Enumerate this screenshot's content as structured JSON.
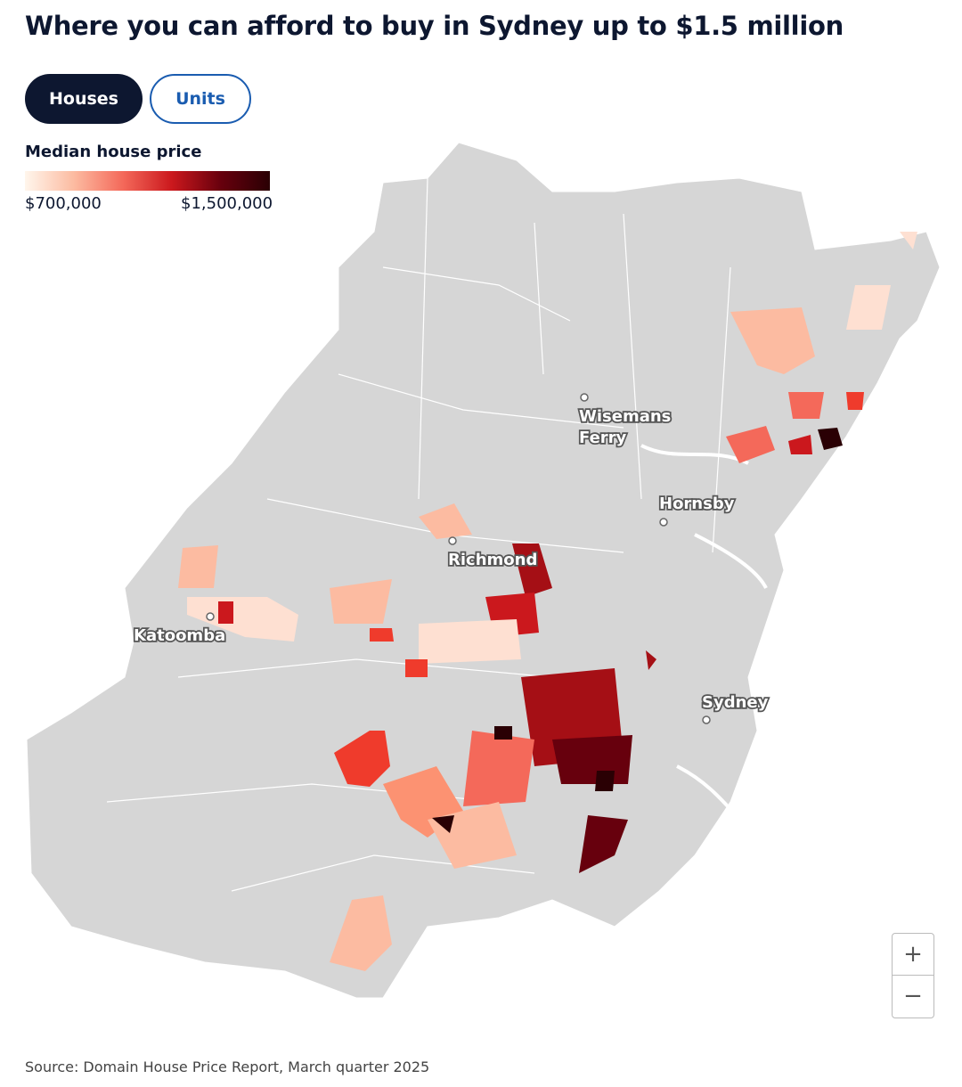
{
  "header": {
    "title": "Where you can afford to buy in Sydney up to $1.5 million"
  },
  "toggle": {
    "options": [
      "Houses",
      "Units"
    ]
  },
  "legend": {
    "title": "Median house price",
    "min_label": "$700,000",
    "max_label": "$1,500,000"
  },
  "places": [
    {
      "lines": [
        "Wisemans",
        "Ferry"
      ]
    },
    {
      "lines": [
        "Hornsby"
      ]
    },
    {
      "lines": [
        "Richmond"
      ]
    },
    {
      "lines": [
        "Katoomba"
      ]
    },
    {
      "lines": [
        "Sydney"
      ]
    }
  ],
  "zoom": [
    "+",
    "−"
  ],
  "footer": {
    "source": "Source: Domain House Price Report, March quarter 2025"
  }
}
